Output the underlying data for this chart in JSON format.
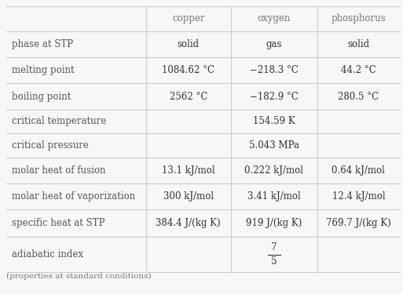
{
  "headers": [
    "",
    "copper",
    "oxygen",
    "phosphorus"
  ],
  "rows": [
    [
      "phase at STP",
      "solid",
      "gas",
      "solid"
    ],
    [
      "melting point",
      "1084.62 °C",
      "−218.3 °C",
      "44.2 °C"
    ],
    [
      "boiling point",
      "2562 °C",
      "−182.9 °C",
      "280.5 °C"
    ],
    [
      "critical temperature",
      "",
      "154.59 K",
      ""
    ],
    [
      "critical pressure",
      "",
      "5.043 MPa",
      ""
    ],
    [
      "molar heat of fusion",
      "13.1 kJ/mol",
      "0.222 kJ/mol",
      "0.64 kJ/mol"
    ],
    [
      "molar heat of vaporization",
      "300 kJ/mol",
      "3.41 kJ/mol",
      "12.4 kJ/mol"
    ],
    [
      "specific heat at STP",
      "384.4 J/(kg K)",
      "919 J/(kg K)",
      "769.7 J/(kg K)"
    ],
    [
      "adiabatic index",
      "",
      "FRAC_7_5",
      ""
    ]
  ],
  "footer": "(properties at standard conditions)",
  "bg_color": "#f7f7f7",
  "cell_color": "#ffffff",
  "line_color": "#cccccc",
  "text_color": "#333333",
  "label_color": "#555555",
  "header_text_color": "#777777",
  "font_size": 8.5,
  "header_font_size": 8.5,
  "footer_font_size": 7.5,
  "fig_width": 5.13,
  "fig_height": 3.75,
  "dpi": 100
}
